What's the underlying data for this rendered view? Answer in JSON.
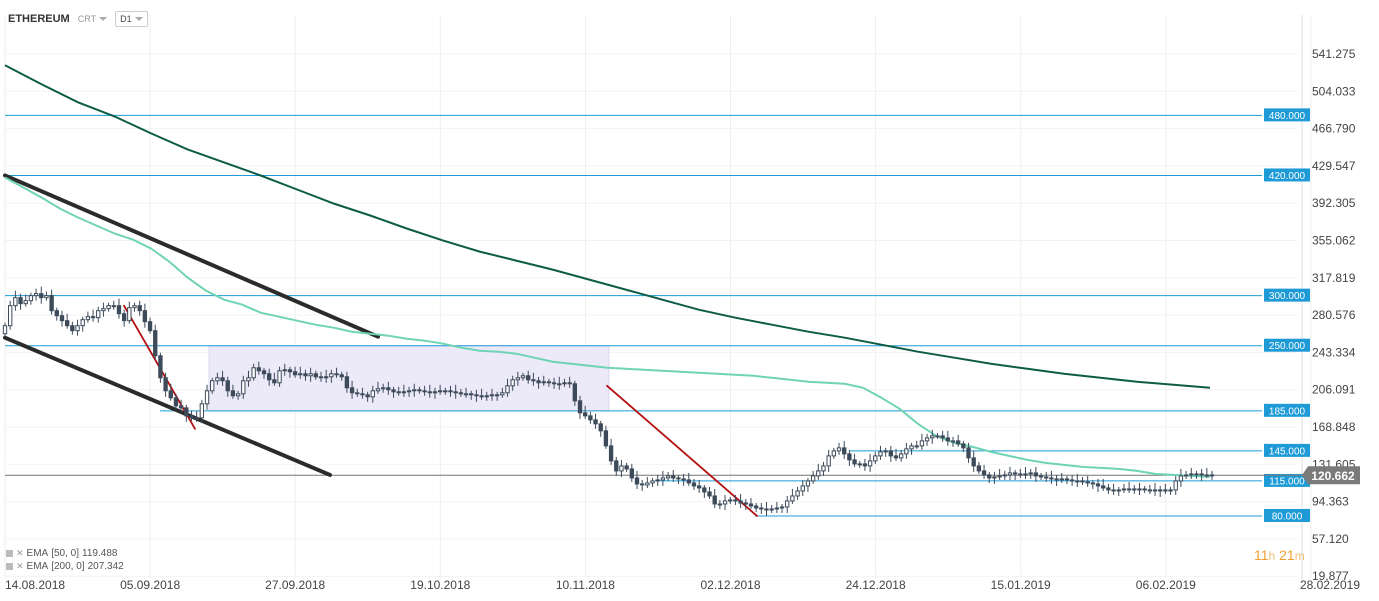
{
  "header": {
    "symbol": "ETHEREUM",
    "broker": "CRT",
    "timeframe": "D1"
  },
  "indicators": [
    {
      "name": "EMA",
      "params": "[50, 0]",
      "value": "119.488"
    },
    {
      "name": "EMA",
      "params": "[200, 0]",
      "value": "207.342"
    }
  ],
  "timer": {
    "hours": "11",
    "h": "h",
    "minutes": "21",
    "m": "m"
  },
  "colors": {
    "level": "#1e9bd7",
    "ema50": "#6fd3b5",
    "ema200": "#0d5c46",
    "channel": "#2b2b2b",
    "trend": "#b30f0f",
    "candle": "#3c4a5a",
    "zone": "#ece9f8"
  },
  "chart_data": {
    "type": "candlestick",
    "x_tick_labels": [
      "14.08.2018",
      "05.09.2018",
      "27.09.2018",
      "19.10.2018",
      "10.11.2018",
      "02.12.2018",
      "24.12.2018",
      "15.01.2019",
      "06.02.2019",
      "28.02.2019"
    ],
    "y_tick_labels": [
      "541.275",
      "504.033",
      "466.790",
      "429.547",
      "392.305",
      "355.062",
      "317.819",
      "280.576",
      "243.334",
      "206.091",
      "168.848",
      "131.605",
      "94.363",
      "57.120",
      "19.877"
    ],
    "ylim": [
      19.877,
      541.275
    ],
    "current_price": "120.662",
    "levels": [
      {
        "value": 480,
        "label": "480.000"
      },
      {
        "value": 420,
        "label": "420.000"
      },
      {
        "value": 300,
        "label": "300.000"
      },
      {
        "value": 250,
        "label": "250.000"
      },
      {
        "value": 185,
        "label": "185.000"
      },
      {
        "value": 145,
        "label": "145.000"
      },
      {
        "value": 115,
        "label": "115.000"
      },
      {
        "value": 80,
        "label": "80.000"
      }
    ],
    "closes": [
      270,
      290,
      298,
      292,
      295,
      300,
      302,
      298,
      300,
      285,
      280,
      275,
      270,
      265,
      270,
      276,
      279,
      278,
      285,
      287,
      290,
      290,
      282,
      275,
      288,
      290,
      285,
      274,
      265,
      240,
      218,
      205,
      198,
      190,
      188,
      180,
      178,
      178,
      192,
      205,
      215,
      218,
      215,
      205,
      200,
      202,
      215,
      218,
      228,
      225,
      222,
      216,
      213,
      225,
      226,
      224,
      221,
      222,
      220,
      222,
      219,
      218,
      219,
      222,
      221,
      219,
      208,
      203,
      202,
      201,
      199,
      205,
      207,
      208,
      206,
      204,
      203,
      204,
      205,
      206,
      205,
      204,
      203,
      204,
      205,
      205,
      204,
      203,
      202,
      202,
      201,
      200,
      199,
      200,
      201,
      201,
      203,
      210,
      216,
      218,
      220,
      216,
      215,
      213,
      214,
      213,
      212,
      212,
      213,
      212,
      195,
      183,
      180,
      176,
      172,
      165,
      150,
      135,
      125,
      130,
      127,
      118,
      112,
      111,
      113,
      115,
      116,
      118,
      120,
      118,
      117,
      116,
      113,
      110,
      108,
      104,
      100,
      92,
      92,
      95,
      96,
      95,
      93,
      92,
      90,
      88,
      87,
      86,
      87,
      88,
      89,
      95,
      100,
      105,
      110,
      115,
      120,
      125,
      130,
      140,
      145,
      148,
      142,
      136,
      132,
      132,
      130,
      135,
      140,
      144,
      145,
      140,
      138,
      142,
      147,
      150,
      150,
      155,
      158,
      160,
      160,
      158,
      155,
      155,
      152,
      148,
      138,
      130,
      125,
      121,
      118,
      119,
      120,
      121,
      123,
      122,
      121,
      122,
      123,
      120,
      119,
      118,
      117,
      116,
      117,
      116,
      115,
      115,
      114,
      113,
      112,
      110,
      108,
      106,
      106,
      106,
      107,
      107,
      107,
      107,
      106,
      106,
      105,
      106,
      105,
      106,
      115,
      120,
      121,
      122,
      122,
      121,
      121,
      120
    ],
    "series": [
      {
        "name": "EMA [50, 0]",
        "style": "moving-average",
        "values": [
          418,
          408,
          398,
          387,
          378,
          370,
          362,
          356,
          347,
          334,
          318,
          305,
          296,
          291,
          283,
          279,
          275,
          271,
          268,
          264,
          262,
          260,
          257,
          255,
          252,
          248,
          245,
          244,
          242,
          238,
          234,
          232,
          230,
          228,
          227,
          226,
          225,
          224,
          223,
          222,
          221,
          220,
          218,
          216,
          214,
          213,
          212,
          208,
          198,
          187,
          172,
          160,
          153,
          149,
          144,
          140,
          136,
          133,
          131,
          129,
          128,
          127,
          125,
          122,
          121,
          120,
          119
        ]
      },
      {
        "name": "EMA [200, 0]",
        "style": "moving-average",
        "values": [
          530,
          511,
          493,
          479,
          462,
          446,
          433,
          420,
          406,
          392,
          380,
          367,
          355,
          344,
          335,
          326,
          316,
          306,
          296,
          286,
          278,
          271,
          264,
          258,
          251,
          244,
          238,
          232,
          227,
          222,
          218,
          214,
          211,
          208
        ]
      }
    ],
    "annotations": [
      {
        "type": "channel-line",
        "from": [
          "14.08.2018",
          420
        ],
        "to": [
          "end of Sep 2018",
          259
        ]
      },
      {
        "type": "channel-line",
        "from": [
          "14.08.2018",
          258
        ],
        "to": [
          "mid Oct 2018",
          121
        ]
      },
      {
        "type": "trend-line",
        "from": [
          "late Aug 2018",
          290
        ],
        "to": [
          "mid Sep 2018",
          167
        ]
      },
      {
        "type": "trend-line",
        "from": [
          "10.11.2018",
          210
        ],
        "to": [
          "early Dec 2018",
          80
        ]
      },
      {
        "type": "range-zone",
        "from_value": 185,
        "to_value": 250,
        "span": "mid Sep 2018 to mid Nov 2018"
      }
    ]
  }
}
